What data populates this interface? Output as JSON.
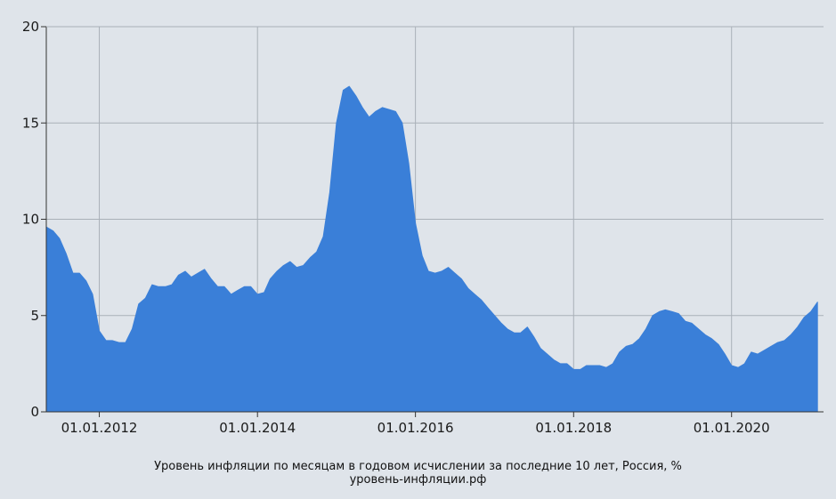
{
  "chart_data": {
    "type": "area",
    "title": "Уровень инфляции по месяцам в годовом исчислении за последние 10 лет, Россия, %",
    "source": "уровень-инфляции.рф",
    "color": "#3a7fd8",
    "grid": true,
    "ylim": [
      0,
      20
    ],
    "yticks": [
      0,
      5,
      10,
      15,
      20
    ],
    "xlim": [
      "2011-05-01",
      "2021-03-01"
    ],
    "xticks": [
      "2012-01-01",
      "2014-01-01",
      "2016-01-01",
      "2018-01-01",
      "2020-01-01"
    ],
    "xtick_labels": [
      "01.01.2012",
      "01.01.2014",
      "01.01.2016",
      "01.01.2018",
      "01.01.2020"
    ],
    "series": [
      {
        "x": [
          "2011-05-01",
          "2011-06-01",
          "2011-07-01",
          "2011-08-01",
          "2011-09-01",
          "2011-10-01",
          "2011-11-01",
          "2011-12-01",
          "2012-01-01",
          "2012-02-01",
          "2012-03-01",
          "2012-04-01",
          "2012-05-01",
          "2012-06-01",
          "2012-07-01",
          "2012-08-01",
          "2012-09-01",
          "2012-10-01",
          "2012-11-01",
          "2012-12-01",
          "2013-01-01",
          "2013-02-01",
          "2013-03-01",
          "2013-04-01",
          "2013-05-01",
          "2013-06-01",
          "2013-07-01",
          "2013-08-01",
          "2013-09-01",
          "2013-10-01",
          "2013-11-01",
          "2013-12-01",
          "2014-01-01",
          "2014-02-01",
          "2014-03-01",
          "2014-04-01",
          "2014-05-01",
          "2014-06-01",
          "2014-07-01",
          "2014-08-01",
          "2014-09-01",
          "2014-10-01",
          "2014-11-01",
          "2014-12-01",
          "2015-01-01",
          "2015-02-01",
          "2015-03-01",
          "2015-04-01",
          "2015-05-01",
          "2015-06-01",
          "2015-07-01",
          "2015-08-01",
          "2015-09-01",
          "2015-10-01",
          "2015-11-01",
          "2015-12-01",
          "2016-01-01",
          "2016-02-01",
          "2016-03-01",
          "2016-04-01",
          "2016-05-01",
          "2016-06-01",
          "2016-07-01",
          "2016-08-01",
          "2016-09-01",
          "2016-10-01",
          "2016-11-01",
          "2016-12-01",
          "2017-01-01",
          "2017-02-01",
          "2017-03-01",
          "2017-04-01",
          "2017-05-01",
          "2017-06-01",
          "2017-07-01",
          "2017-08-01",
          "2017-09-01",
          "2017-10-01",
          "2017-11-01",
          "2017-12-01",
          "2018-01-01",
          "2018-02-01",
          "2018-03-01",
          "2018-04-01",
          "2018-05-01",
          "2018-06-01",
          "2018-07-01",
          "2018-08-01",
          "2018-09-01",
          "2018-10-01",
          "2018-11-01",
          "2018-12-01",
          "2019-01-01",
          "2019-02-01",
          "2019-03-01",
          "2019-04-01",
          "2019-05-01",
          "2019-06-01",
          "2019-07-01",
          "2019-08-01",
          "2019-09-01",
          "2019-10-01",
          "2019-11-01",
          "2019-12-01",
          "2020-01-01",
          "2020-02-01",
          "2020-03-01",
          "2020-04-01",
          "2020-05-01",
          "2020-06-01",
          "2020-07-01",
          "2020-08-01",
          "2020-09-01",
          "2020-10-01",
          "2020-11-01",
          "2020-12-01",
          "2021-01-01",
          "2021-02-01"
        ],
        "values": [
          9.6,
          9.4,
          9.0,
          8.2,
          7.2,
          7.2,
          6.8,
          6.1,
          4.2,
          3.7,
          3.7,
          3.6,
          3.6,
          4.3,
          5.6,
          5.9,
          6.6,
          6.5,
          6.5,
          6.6,
          7.1,
          7.3,
          7.0,
          7.2,
          7.4,
          6.9,
          6.5,
          6.5,
          6.1,
          6.3,
          6.5,
          6.5,
          6.1,
          6.2,
          6.9,
          7.3,
          7.6,
          7.8,
          7.5,
          7.6,
          8.0,
          8.3,
          9.1,
          11.4,
          15.0,
          16.7,
          16.9,
          16.4,
          15.8,
          15.3,
          15.6,
          15.8,
          15.7,
          15.6,
          15.0,
          12.9,
          9.8,
          8.1,
          7.3,
          7.2,
          7.3,
          7.5,
          7.2,
          6.9,
          6.4,
          6.1,
          5.8,
          5.4,
          5.0,
          4.6,
          4.3,
          4.1,
          4.1,
          4.4,
          3.9,
          3.3,
          3.0,
          2.7,
          2.5,
          2.5,
          2.2,
          2.2,
          2.4,
          2.4,
          2.4,
          2.3,
          2.5,
          3.1,
          3.4,
          3.5,
          3.8,
          4.3,
          5.0,
          5.2,
          5.3,
          5.2,
          5.1,
          4.7,
          4.6,
          4.3,
          4.0,
          3.8,
          3.5,
          3.0,
          2.4,
          2.3,
          2.5,
          3.1,
          3.0,
          3.2,
          3.4,
          3.6,
          3.7,
          4.0,
          4.4,
          4.9,
          5.2,
          5.7
        ]
      }
    ]
  }
}
